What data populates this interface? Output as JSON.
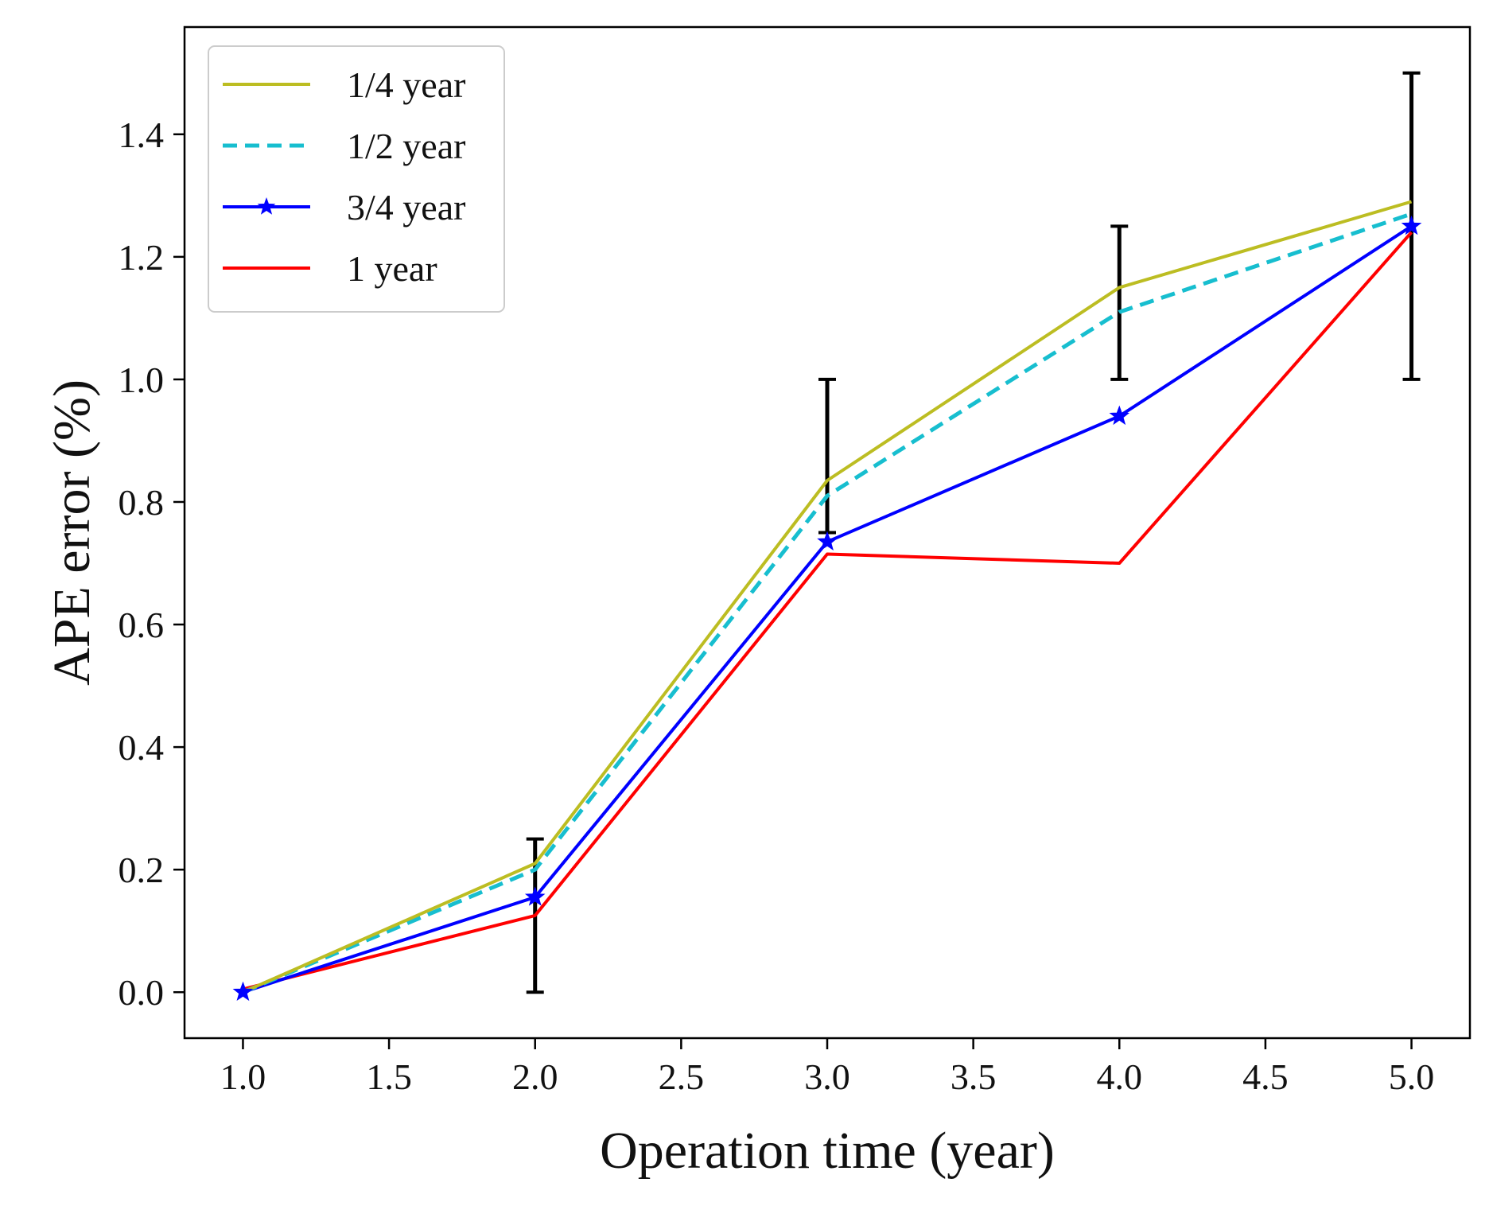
{
  "chart_data": {
    "type": "line",
    "title": "",
    "xlabel": "Operation time (year)",
    "ylabel": "APE error (%)",
    "x": [
      1.0,
      2.0,
      3.0,
      4.0,
      5.0
    ],
    "xlim": [
      0.8,
      5.2
    ],
    "ylim": [
      -0.075,
      1.575
    ],
    "xticks": [
      1.0,
      1.5,
      2.0,
      2.5,
      3.0,
      3.5,
      4.0,
      4.5,
      5.0
    ],
    "xtick_labels": [
      "1.0",
      "1.5",
      "2.0",
      "2.5",
      "3.0",
      "3.5",
      "4.0",
      "4.5",
      "5.0"
    ],
    "yticks": [
      0.0,
      0.2,
      0.4,
      0.6,
      0.8,
      1.0,
      1.2,
      1.4
    ],
    "ytick_labels": [
      "0.0",
      "0.2",
      "0.4",
      "0.6",
      "0.8",
      "1.0",
      "1.2",
      "1.4"
    ],
    "grid": false,
    "legend_position": "top-left",
    "series": [
      {
        "name": "1/4 year",
        "label": "1/4 year",
        "values": [
          0.0,
          0.21,
          0.835,
          1.15,
          1.29
        ],
        "color": "#bcbd22",
        "style": "solid",
        "marker": "none"
      },
      {
        "name": "1/2 year",
        "label": "1/2 year",
        "values": [
          0.0,
          0.2,
          0.81,
          1.11,
          1.27
        ],
        "color": "#17becf",
        "style": "dashed",
        "marker": "none"
      },
      {
        "name": "3/4 year",
        "label": "3/4 year",
        "values": [
          0.0,
          0.155,
          0.735,
          0.94,
          1.25
        ],
        "color": "#0000ff",
        "style": "solid",
        "marker": "star"
      },
      {
        "name": "1 year",
        "label": "1 year",
        "values": [
          0.005,
          0.125,
          0.715,
          0.7,
          1.24
        ],
        "color": "#ff0000",
        "style": "solid",
        "marker": "none"
      }
    ],
    "error_bars": {
      "color": "#000000",
      "x": [
        2.0,
        3.0,
        4.0,
        5.0
      ],
      "low": [
        0.0,
        0.75,
        1.0,
        1.0
      ],
      "high": [
        0.25,
        1.0,
        1.25,
        1.5
      ]
    }
  }
}
